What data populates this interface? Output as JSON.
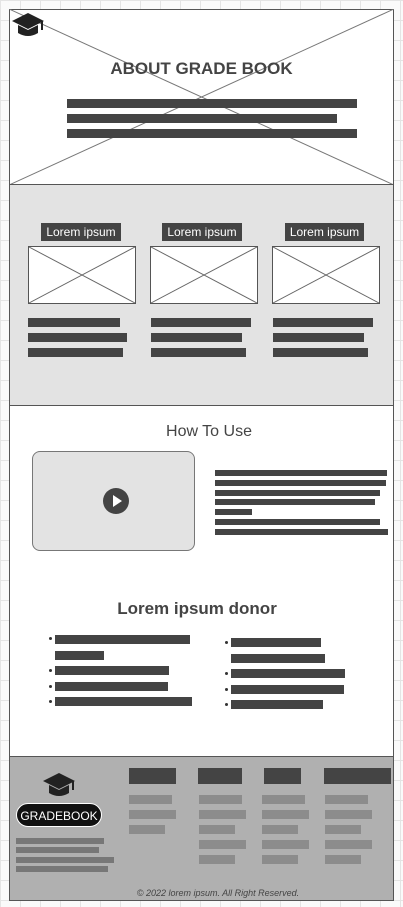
{
  "hero": {
    "title": "ABOUT GRADE BOOK",
    "logo_icon": "graduation-cap-icon"
  },
  "cards": [
    {
      "label": "Lorem ipsum"
    },
    {
      "label": "Lorem ipsum"
    },
    {
      "label": "Lorem ipsum"
    }
  ],
  "how_to_use": {
    "heading": "How To Use",
    "video_icon": "play-icon"
  },
  "donor": {
    "heading": "Lorem ipsum donor"
  },
  "footer": {
    "logo_icon": "graduation-cap-icon",
    "brand": "GRADEBOOK",
    "copyright": "© 2022 lorem ipsum. All Right Reserved."
  }
}
